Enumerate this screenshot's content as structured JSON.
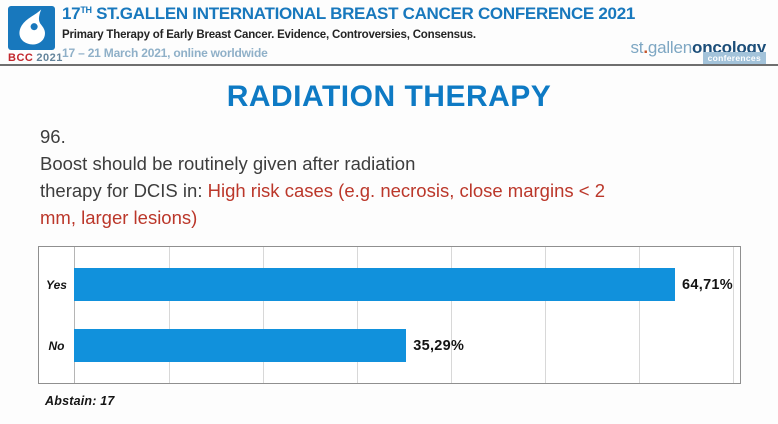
{
  "header": {
    "logo_badge": {
      "acronym": "BCC",
      "year": "2021"
    },
    "title_num": "17",
    "title_sup": "TH",
    "title_rest": " ST.GALLEN INTERNATIONAL BREAST CANCER CONFERENCE 2021",
    "subtitle": "Primary Therapy of Early Breast Cancer. Evidence, Controversies, Consensus.",
    "dates": "17 – 21 March 2021, online worldwide",
    "org_logo": {
      "part_st": "st",
      "dot": ".",
      "part_gallen": "gallen",
      "part_onco": "oncology",
      "badge": "conferences"
    }
  },
  "slide": {
    "title": "RADIATION THERAPY",
    "question_number": "96.",
    "question_line1": "Boost should be routinely given after radiation",
    "question_line2_black": "therapy for DCIS in: ",
    "question_line2_red": "High risk cases (e.g. necrosis, close margins < 2",
    "question_line3_red": "mm, larger lesions)",
    "abstain": "Abstain: 17"
  },
  "chart_data": {
    "type": "bar",
    "orientation": "horizontal",
    "title": "",
    "categories": [
      "Yes",
      "No"
    ],
    "values": [
      64.71,
      35.29
    ],
    "value_labels": [
      "64,71%",
      "35,29%"
    ],
    "xlim": [
      0,
      70
    ],
    "gridline_interval": 10,
    "grid": true,
    "legend": false,
    "bar_color": "#1191dc"
  },
  "colors": {
    "accent_blue": "#0e7ac4",
    "header_blue": "#1878bd",
    "question_red": "#bb372a",
    "bar_blue": "#1191dc",
    "bcc_red": "#c2272d"
  }
}
